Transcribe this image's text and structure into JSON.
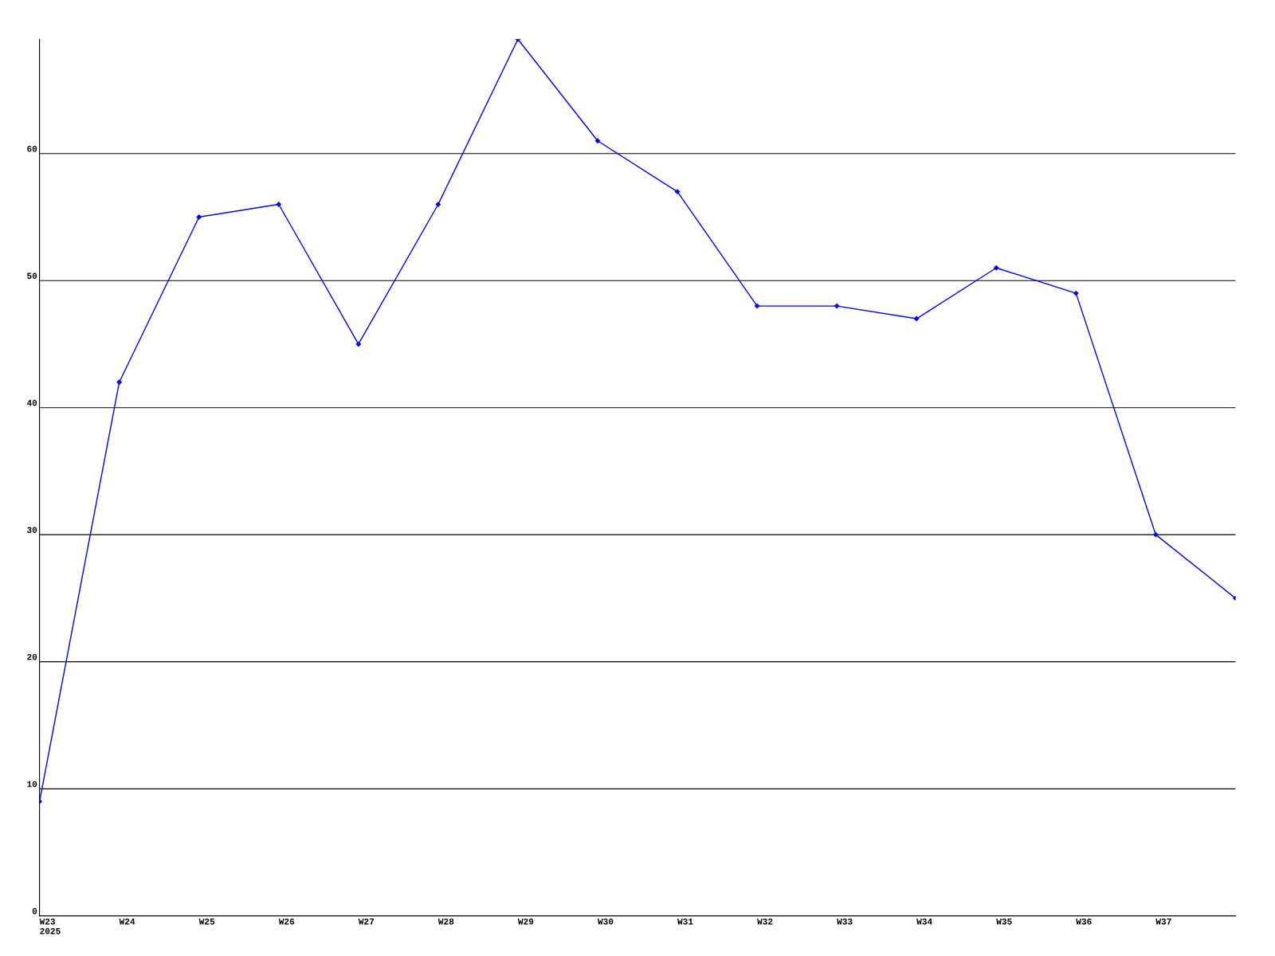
{
  "chart_data": {
    "type": "line",
    "categories": [
      "W23\n2025",
      "W24",
      "W25",
      "W26",
      "W27",
      "W28",
      "W29",
      "W30",
      "W31",
      "W32",
      "W33",
      "W34",
      "W35",
      "W36",
      "W37",
      null
    ],
    "series": [
      {
        "color": "#0000ff",
        "values": [
          9,
          42,
          55,
          56,
          45,
          56,
          69,
          61,
          57,
          48,
          48,
          47,
          51,
          49,
          30,
          25
        ]
      }
    ],
    "ylim": [
      0,
      69
    ],
    "yticks": [
      0,
      10,
      20,
      30,
      40,
      50,
      60
    ],
    "grid": "y",
    "marker": "diamond",
    "line_style": "solid",
    "legend": false
  }
}
